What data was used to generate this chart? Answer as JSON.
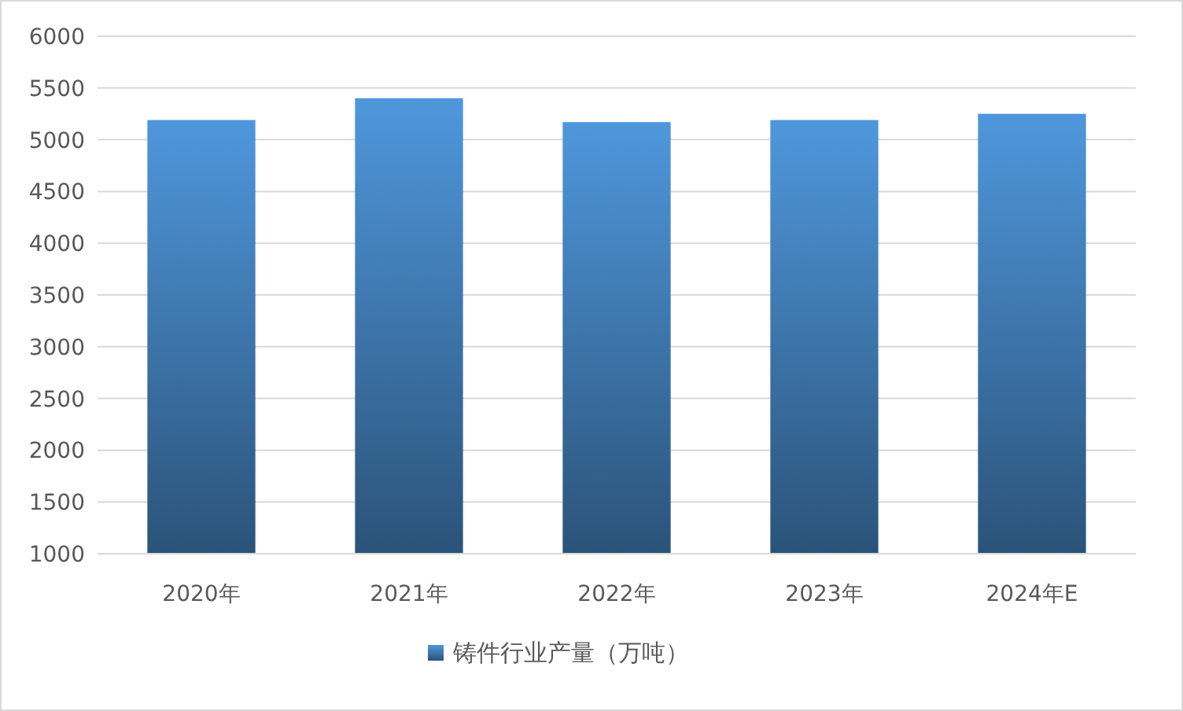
{
  "chart_data": {
    "type": "bar",
    "categories": [
      "2020年",
      "2021年",
      "2022年",
      "2023年",
      "2024年E"
    ],
    "series": [
      {
        "name": "铸件行业产量（万吨）",
        "color": "#4f97dc",
        "values": [
          5190,
          5400,
          5170,
          5190,
          5250
        ]
      }
    ],
    "ylim": [
      1000,
      6000
    ],
    "yticks": [
      1000,
      1500,
      2000,
      2500,
      3000,
      3500,
      4000,
      4500,
      5000,
      5500,
      6000
    ],
    "grid": "y",
    "legend": "bottom"
  }
}
